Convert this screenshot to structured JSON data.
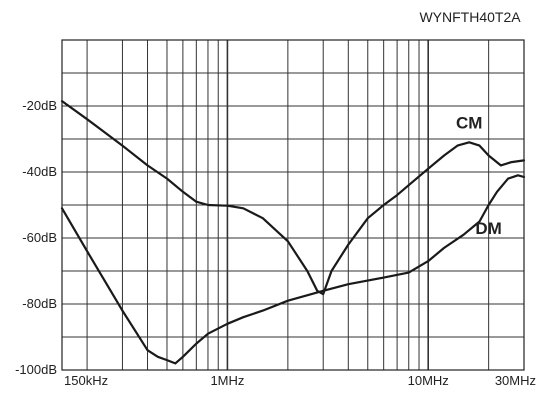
{
  "chart_data": {
    "type": "line",
    "title": "WYNFTH40T2A",
    "xlabel": "",
    "ylabel": "",
    "x_scale": "log",
    "xlim": [
      0.15,
      30
    ],
    "ylim": [
      -100,
      0
    ],
    "grid": true,
    "line_color": "#1a1a1a",
    "x_ticks": [
      {
        "label": "150kHz",
        "value": 0.15
      },
      {
        "label": "1MHz",
        "value": 1
      },
      {
        "label": "10MHz",
        "value": 10
      },
      {
        "label": "30MHz",
        "value": 30
      }
    ],
    "y_ticks": [
      {
        "label": "-20dB",
        "value": -20
      },
      {
        "label": "-40dB",
        "value": -40
      },
      {
        "label": "-60dB",
        "value": -60
      },
      {
        "label": "-80dB",
        "value": -80
      },
      {
        "label": "-100dB",
        "value": -100
      }
    ],
    "series": [
      {
        "name": "CM",
        "points": [
          [
            0.15,
            -18.5
          ],
          [
            0.2,
            -24
          ],
          [
            0.3,
            -32
          ],
          [
            0.4,
            -38
          ],
          [
            0.5,
            -42
          ],
          [
            0.6,
            -46
          ],
          [
            0.7,
            -49
          ],
          [
            0.8,
            -50
          ],
          [
            1.0,
            -50.2
          ],
          [
            1.2,
            -51
          ],
          [
            1.5,
            -54
          ],
          [
            2.0,
            -61
          ],
          [
            2.5,
            -70
          ],
          [
            2.8,
            -76
          ],
          [
            3.0,
            -77
          ],
          [
            3.3,
            -70
          ],
          [
            4.0,
            -62
          ],
          [
            5.0,
            -54
          ],
          [
            6.0,
            -50
          ],
          [
            7.0,
            -47
          ],
          [
            8.0,
            -44
          ],
          [
            10.0,
            -39
          ],
          [
            12.0,
            -35
          ],
          [
            14.0,
            -32
          ],
          [
            16.0,
            -31
          ],
          [
            18.0,
            -32
          ],
          [
            20.0,
            -35
          ],
          [
            23.0,
            -38
          ],
          [
            26.0,
            -37
          ],
          [
            30.0,
            -36.5
          ]
        ]
      },
      {
        "name": "DM",
        "points": [
          [
            0.15,
            -51
          ],
          [
            0.2,
            -64
          ],
          [
            0.3,
            -82
          ],
          [
            0.4,
            -94
          ],
          [
            0.45,
            -96
          ],
          [
            0.5,
            -97
          ],
          [
            0.55,
            -98
          ],
          [
            0.6,
            -96
          ],
          [
            0.7,
            -92
          ],
          [
            0.8,
            -89
          ],
          [
            1.0,
            -86
          ],
          [
            1.2,
            -84
          ],
          [
            1.5,
            -82
          ],
          [
            2.0,
            -79
          ],
          [
            3.0,
            -76
          ],
          [
            4.0,
            -74
          ],
          [
            6.0,
            -72
          ],
          [
            8.0,
            -70.5
          ],
          [
            10.0,
            -67
          ],
          [
            12.0,
            -63
          ],
          [
            15.0,
            -59
          ],
          [
            18.0,
            -55
          ],
          [
            20.0,
            -50
          ],
          [
            22.0,
            -46
          ],
          [
            25.0,
            -42
          ],
          [
            28.0,
            -41
          ],
          [
            30.0,
            -41.5
          ]
        ]
      }
    ]
  }
}
